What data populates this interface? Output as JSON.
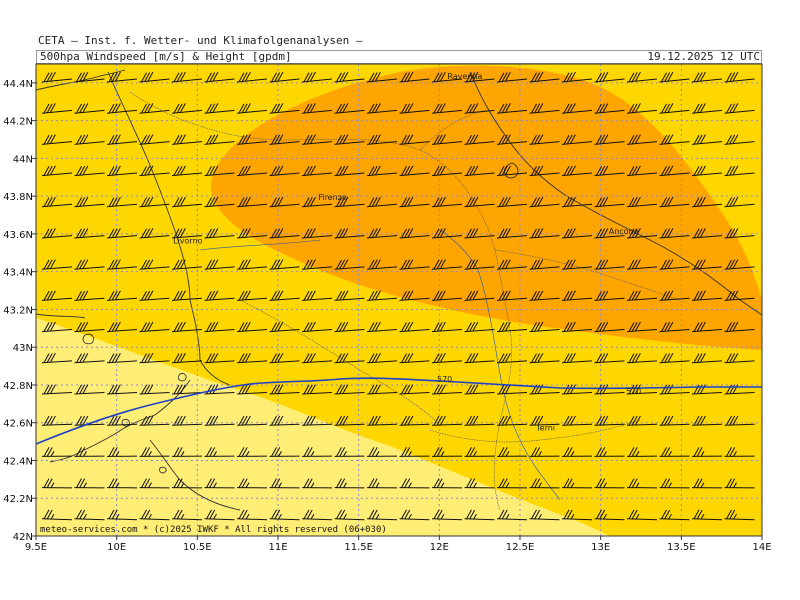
{
  "header": {
    "title": "CETA – Inst. f. Wetter- und Klimafolgenanalysen –",
    "subtitle": "500hpa Windspeed [m/s] & Height [gpdm]",
    "valid_time": "19.12.2025 12 UTC"
  },
  "credit": "meteo-services.com * (c)2025 IWKF * All rights reserved (06+030)",
  "axes": {
    "x_ticks": [
      "9.5E",
      "10E",
      "10.5E",
      "11E",
      "11.5E",
      "12E",
      "12.5E",
      "13E",
      "13.5E",
      "14E"
    ],
    "y_ticks": [
      "42N",
      "42.2N",
      "42.4N",
      "42.6N",
      "42.8N",
      "43N",
      "43.2N",
      "43.4N",
      "43.6N",
      "43.8N",
      "44N",
      "44.2N",
      "44.4N"
    ],
    "x_range": [
      9.5,
      14.0
    ],
    "y_range": [
      42.0,
      44.5
    ]
  },
  "cities": [
    {
      "name": "Ravenna",
      "lon": 12.05,
      "lat": 44.42
    },
    {
      "name": "Firenze",
      "lon": 11.25,
      "lat": 43.78
    },
    {
      "name": "Livorno",
      "lon": 10.35,
      "lat": 43.55
    },
    {
      "name": "Ancona",
      "lon": 13.05,
      "lat": 43.6
    },
    {
      "name": "Terni",
      "lon": 12.6,
      "lat": 42.56
    }
  ],
  "contour": {
    "label": "570",
    "labels_at_lon": [
      11.98,
      13.2
    ]
  },
  "colors": {
    "light_yellow": "#ffee75",
    "yellow": "#ffd700",
    "orange": "#ffa500",
    "contour": "#1e40c8",
    "grid": "#8a8ad8",
    "coast": "#333333",
    "barb": "#111111"
  }
}
